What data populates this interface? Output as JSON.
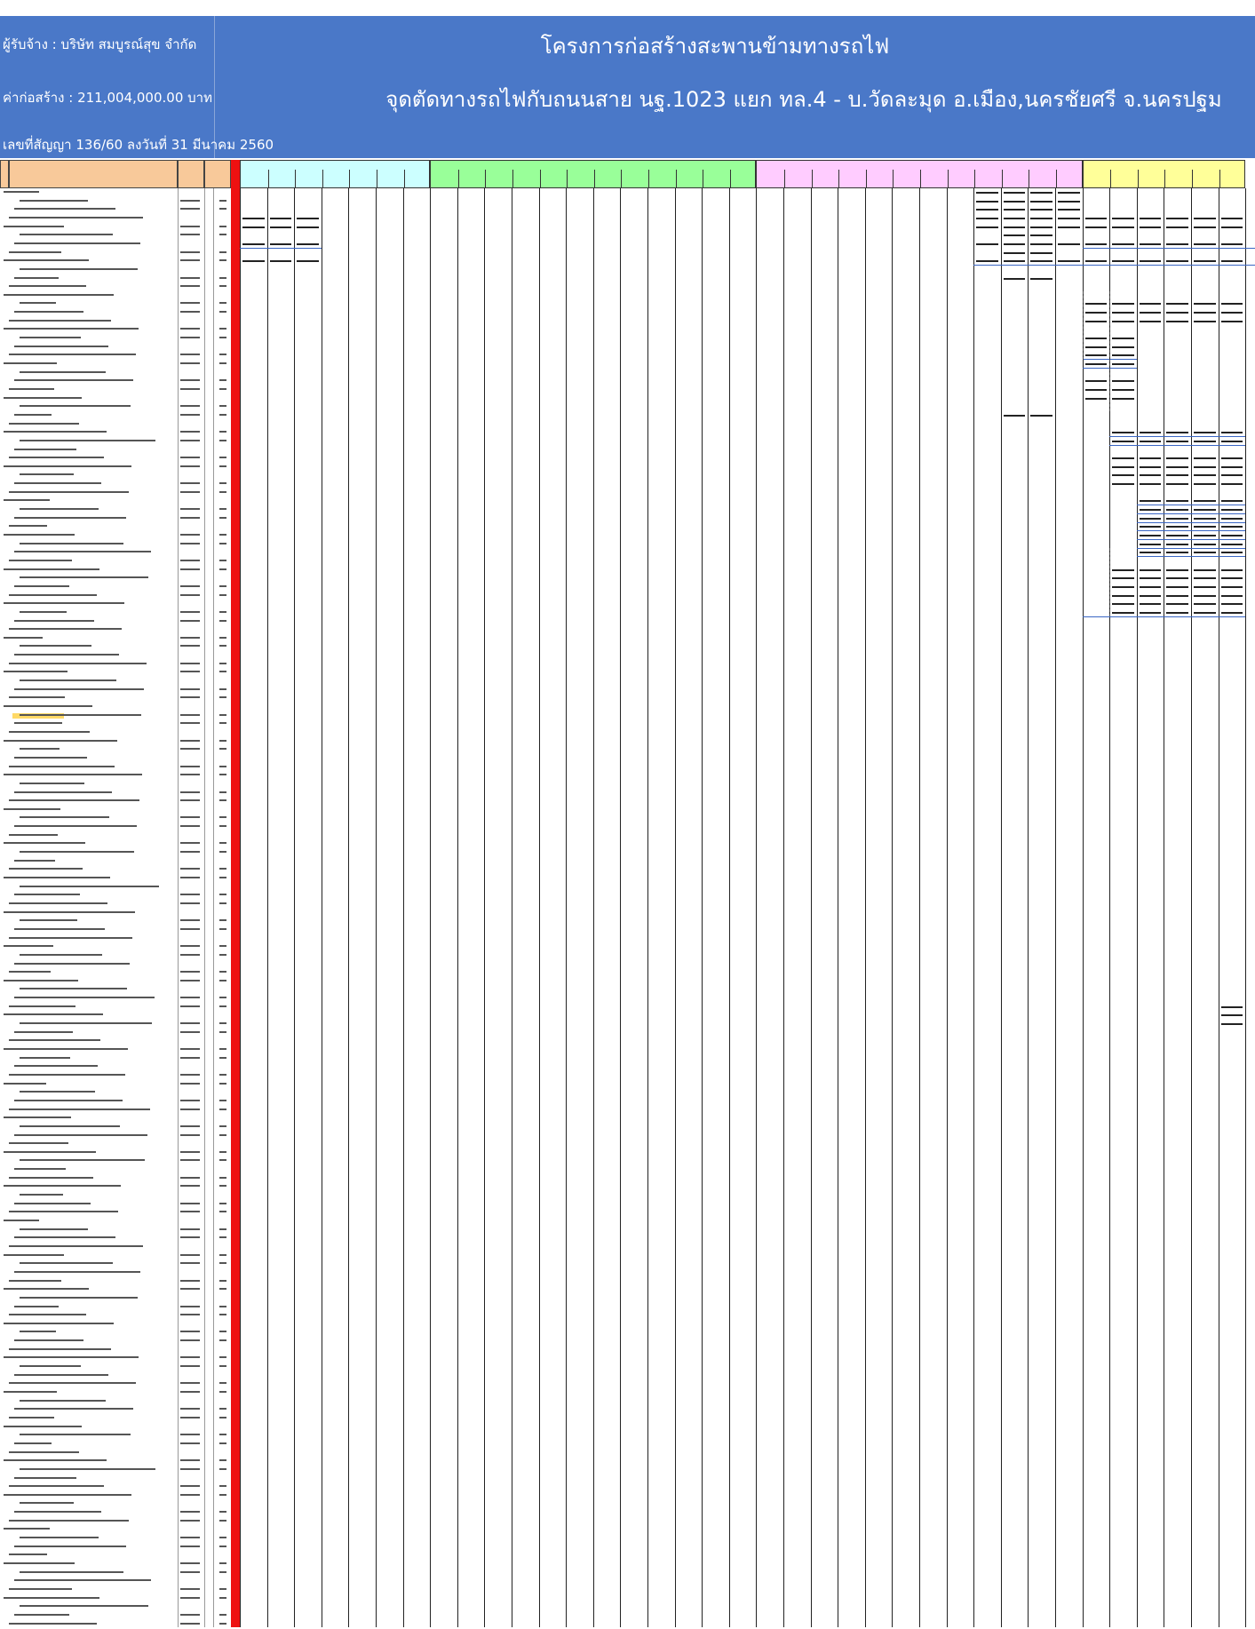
{
  "header": {
    "contractor": "ผู้รับจ้าง : บริษัท  สมบูรณ์สุข  จำกัด",
    "construction_cost": "ค่าก่อสร้าง : 211,004,000.00  บาท",
    "contract_no": "เลขที่สัญญา  136/60  ลงวันที่ 31 มีนาคม 2560",
    "project_title": "โครงการก่อสร้างสะพานข้ามทางรถไฟ",
    "project_location": "จุดตัดทางรถไฟกับถนนสาย นฐ.1023 แยก ทล.4 - บ.วัดละมุด อ.เมือง,นครชัยศรี จ.นครปฐม"
  },
  "colors": {
    "banner": "#4a78c8",
    "header_col_orange": "#f8c99a",
    "band_cyan": "#ccffff",
    "band_green": "#99ff99",
    "band_pink": "#ffccff",
    "band_yellow": "#ffff99",
    "red_marker": "#ee1111"
  },
  "sheet": {
    "row_count": 168,
    "period_bands": 4,
    "band_columns": [
      7,
      12,
      12,
      6
    ]
  }
}
